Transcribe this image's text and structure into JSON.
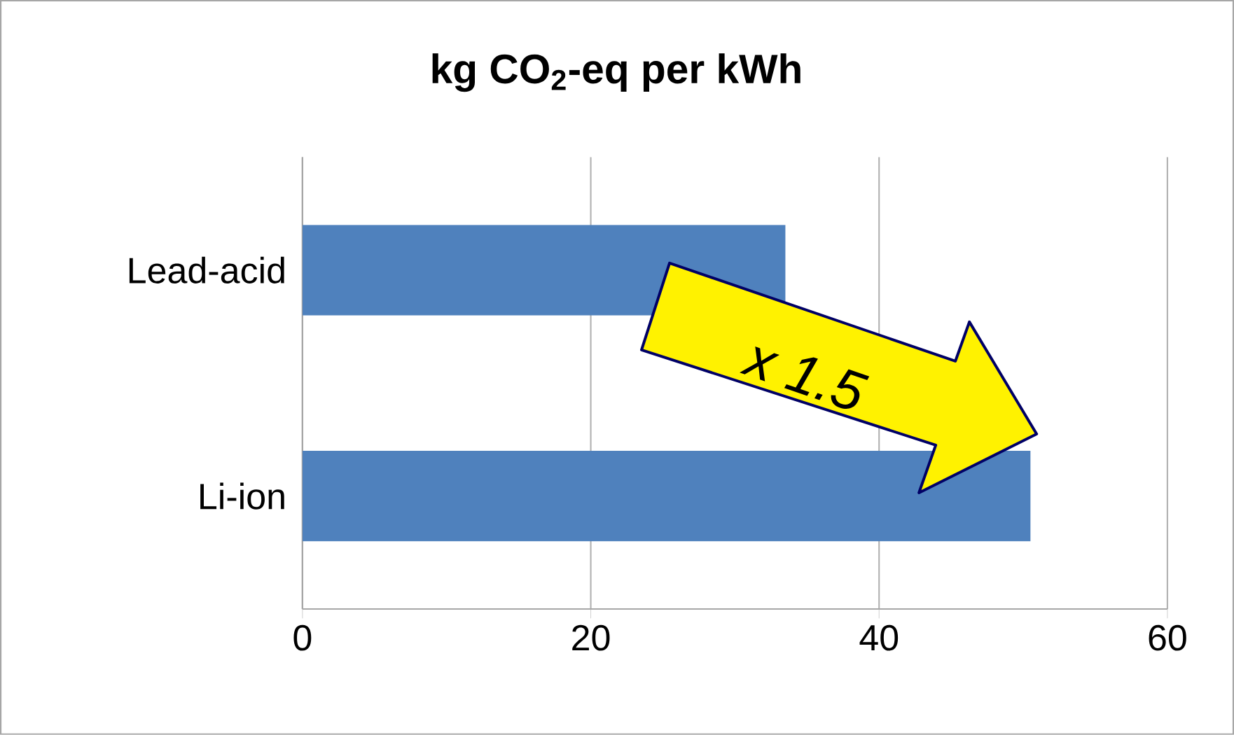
{
  "chart_data": {
    "type": "bar",
    "orientation": "horizontal",
    "title": "kg CO$_{2}$-eq per kWh",
    "categories": [
      "Lead-acid",
      "Li-ion"
    ],
    "values": [
      33.5,
      50.5
    ],
    "color": "#4f81bd",
    "xlim": [
      0,
      60
    ],
    "xticks": [
      0,
      20,
      40,
      60
    ],
    "grid": "x",
    "annotations": [
      "*x 1.5*"
    ]
  }
}
